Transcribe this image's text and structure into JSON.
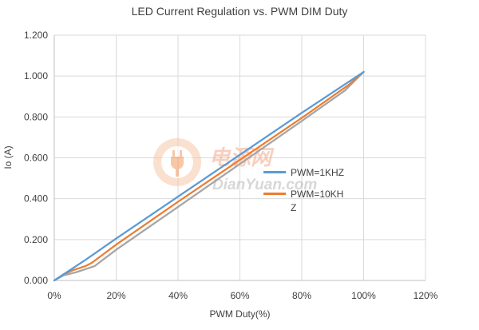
{
  "chart_data": {
    "type": "line",
    "title": "LED Current Regulation vs. PWM DIM Duty",
    "xlabel": "PWM Duty(%)",
    "ylabel": "Io (A)",
    "xlim": [
      0,
      1.2
    ],
    "ylim": [
      0,
      1.2
    ],
    "x_ticks": [
      0,
      0.2,
      0.4,
      0.6,
      0.8,
      1.0,
      1.2
    ],
    "x_tick_labels": [
      "0%",
      "20%",
      "40%",
      "60%",
      "80%",
      "100%",
      "120%"
    ],
    "y_ticks": [
      0,
      0.2,
      0.4,
      0.6,
      0.8,
      1.0,
      1.2
    ],
    "y_tick_labels": [
      "0.000",
      "0.200",
      "0.400",
      "0.600",
      "0.800",
      "1.000",
      "1.200"
    ],
    "grid": true,
    "legend_position": "right",
    "series": [
      {
        "name": "PWM=1KHZ",
        "color": "#5b9bd5",
        "x": [
          0,
          0.05,
          0.1,
          0.2,
          0.4,
          0.6,
          0.8,
          0.97,
          1.0
        ],
        "y": [
          0,
          0.05,
          0.1,
          0.205,
          0.41,
          0.615,
          0.82,
          0.99,
          1.02
        ]
      },
      {
        "name": "PWM=10KHZ",
        "color": "#ed7d31",
        "x": [
          0,
          0.03,
          0.06,
          0.1,
          0.12,
          0.2,
          0.4,
          0.6,
          0.8,
          0.95,
          1.0
        ],
        "y": [
          0,
          0.03,
          0.05,
          0.07,
          0.085,
          0.175,
          0.385,
          0.59,
          0.795,
          0.955,
          1.02
        ]
      },
      {
        "name": "",
        "color": "#a5a5a5",
        "x": [
          0,
          0.03,
          0.07,
          0.1,
          0.13,
          0.2,
          0.4,
          0.6,
          0.8,
          0.94,
          1.0
        ],
        "y": [
          0,
          0.025,
          0.04,
          0.055,
          0.07,
          0.15,
          0.36,
          0.57,
          0.78,
          0.93,
          1.02
        ]
      }
    ]
  },
  "watermark": {
    "cn_text": "电源网",
    "en_text": "DianYuan.com"
  }
}
